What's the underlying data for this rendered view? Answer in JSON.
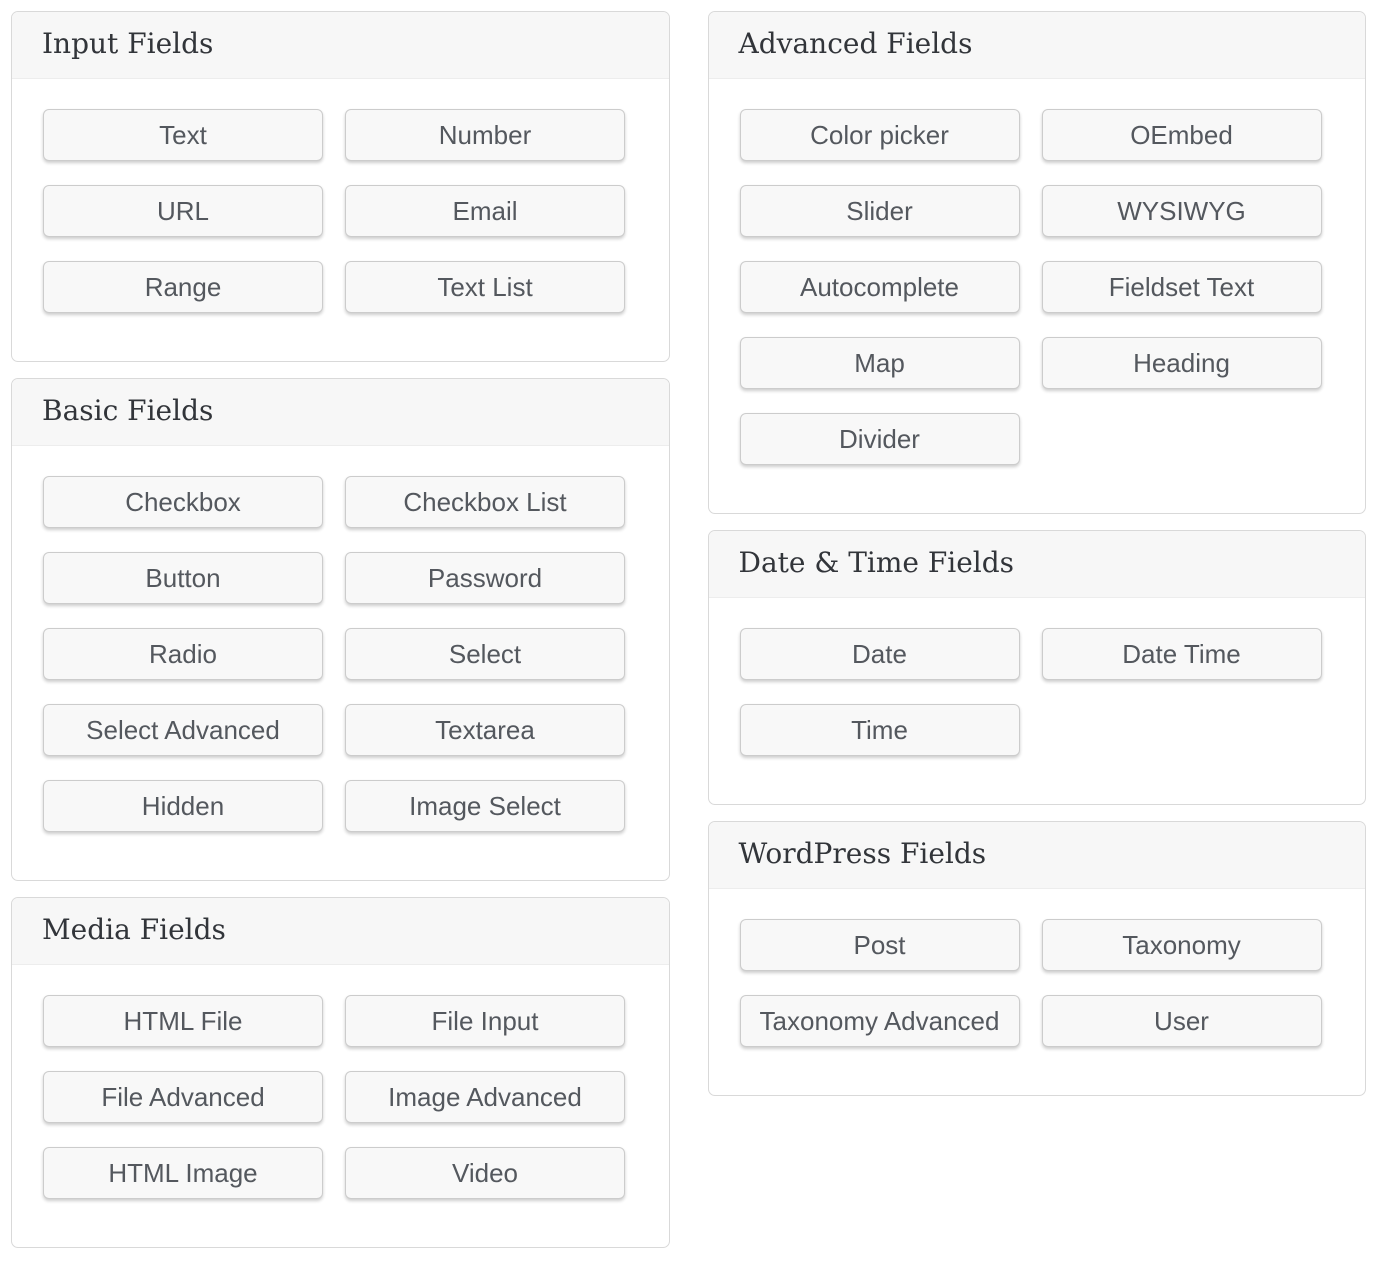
{
  "columns": {
    "left": [
      {
        "title": "Input Fields",
        "buttons": [
          "Text",
          "Number",
          "URL",
          "Email",
          "Range",
          "Text List"
        ]
      },
      {
        "title": "Basic Fields",
        "buttons": [
          "Checkbox",
          "Checkbox List",
          "Button",
          "Password",
          "Radio",
          "Select",
          "Select Advanced",
          "Textarea",
          "Hidden",
          "Image Select"
        ]
      },
      {
        "title": "Media Fields",
        "buttons": [
          "HTML File",
          "File Input",
          "File Advanced",
          "Image Advanced",
          "HTML Image",
          "Video"
        ]
      }
    ],
    "right": [
      {
        "title": "Advanced Fields",
        "buttons": [
          "Color picker",
          "OEmbed",
          "Slider",
          "WYSIWYG",
          "Autocomplete",
          "Fieldset Text",
          "Map",
          "Heading",
          "Divider"
        ]
      },
      {
        "title": "Date & Time Fields",
        "buttons": [
          "Date",
          "Date Time",
          "Time"
        ]
      },
      {
        "title": "WordPress Fields",
        "buttons": [
          "Post",
          "Taxonomy",
          "Taxonomy Advanced",
          "User"
        ]
      }
    ]
  },
  "colors": {
    "page_background": "#ffffff",
    "panel_border": "#d9d9d9",
    "panel_heading_background": "#f7f7f7",
    "heading_text": "#32353a",
    "button_background": "#f8f8f8",
    "button_border": "#cccccc",
    "button_text": "#54585e"
  }
}
